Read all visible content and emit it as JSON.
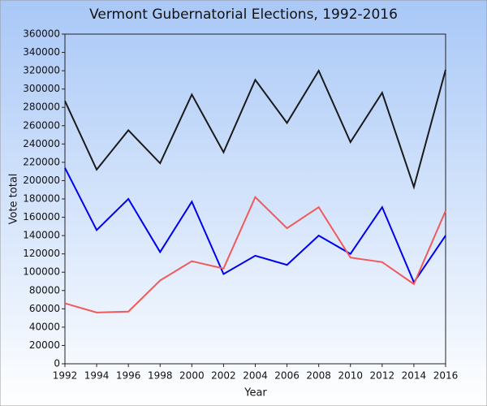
{
  "chart_data": {
    "type": "line",
    "title": "Vermont Gubernatorial Elections, 1992-2016",
    "x_label": "Year",
    "y_label": "Vote total",
    "x": [
      1992,
      1994,
      1996,
      1998,
      2000,
      2002,
      2004,
      2006,
      2008,
      2010,
      2012,
      2014,
      2016
    ],
    "series": [
      {
        "color": "#1a1a1a",
        "values": [
          287000,
          212000,
          255000,
          219000,
          294000,
          231000,
          310000,
          263000,
          320000,
          242000,
          296000,
          193000,
          321000
        ]
      },
      {
        "color": "#0000ee",
        "values": [
          214000,
          146000,
          180000,
          122000,
          177000,
          98000,
          118000,
          108000,
          140000,
          120000,
          171000,
          89000,
          140000
        ]
      },
      {
        "color": "#f05a5a",
        "values": [
          66000,
          56000,
          57000,
          91000,
          112000,
          104000,
          182000,
          148000,
          171000,
          116000,
          111000,
          87000,
          167000
        ]
      }
    ],
    "xlim": [
      1992,
      2016
    ],
    "xticks": [
      1992,
      1994,
      1996,
      1998,
      2000,
      2002,
      2004,
      2006,
      2008,
      2010,
      2012,
      2014,
      2016
    ],
    "ylim": [
      0,
      360000
    ],
    "yticks": [
      0,
      20000,
      40000,
      60000,
      80000,
      100000,
      120000,
      140000,
      160000,
      180000,
      200000,
      220000,
      240000,
      260000,
      280000,
      300000,
      320000,
      340000,
      360000
    ]
  }
}
